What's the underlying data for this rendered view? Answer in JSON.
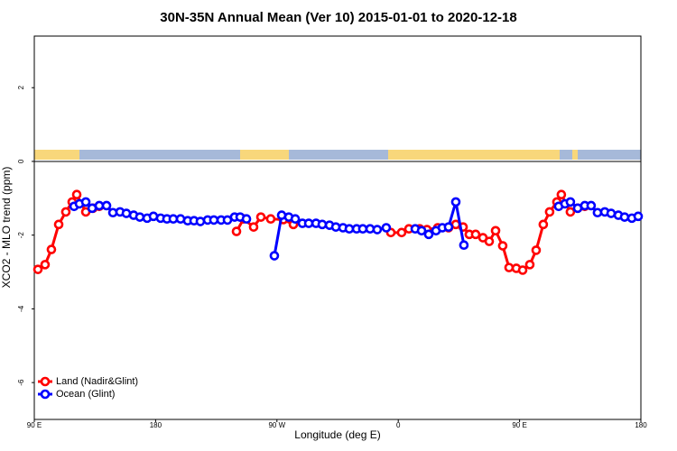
{
  "chart_data": {
    "type": "line",
    "title": "30N-35N Annual Mean (Ver 10)   2015-01-01 to 2020-12-18",
    "x_label": "Longitude (deg E)",
    "y_label": "XCO2 - MLO trend (ppm)",
    "xlim": [
      90,
      540
    ],
    "xticks": [
      {
        "value": 90,
        "label": "90 E"
      },
      180,
      {
        "value": 270,
        "label": "90 W"
      },
      {
        "value": 360,
        "label": "0"
      },
      {
        "value": 450,
        "label": "90 E"
      },
      {
        "value": 540,
        "label": "180"
      }
    ],
    "ylim": [
      -7,
      3.4
    ],
    "yticks": [
      -6,
      -4,
      -2,
      0,
      2
    ],
    "legend": "bottom-left",
    "series": [
      {
        "name": "Land (Nadir&Glint)",
        "color": "#ff0000",
        "x": [
          92.7,
          98.0,
          102.7,
          108.1,
          113.4,
          118.1,
          121.5,
          128.2,
          133.5,
          138.2,
          190,
          240.0,
          245.3,
          252.7,
          258.1,
          265.4,
          274.8,
          282.2,
          320,
          354.5,
          362.5,
          367.9,
          375.9,
          381.3,
          389.3,
          397.3,
          402.7,
          408.1,
          412.7,
          417.4,
          422.8,
          427.5,
          432.2,
          437.5,
          442.2,
          447.6,
          452.3,
          457.6,
          462.3,
          467.6,
          472.3,
          477.7,
          481.0,
          487.7,
          493.1,
          498.4
        ],
        "values": [
          -2.93,
          -2.8,
          -2.39,
          -1.71,
          -1.37,
          -1.1,
          -0.9,
          -1.37,
          -1.27,
          -1.22,
          null,
          -1.9,
          -1.56,
          -1.78,
          -1.51,
          -1.56,
          -1.58,
          -1.71,
          null,
          -1.93,
          -1.93,
          -1.83,
          -1.83,
          -1.85,
          -1.8,
          -1.8,
          -1.71,
          -1.78,
          -1.98,
          -1.98,
          -2.07,
          -2.17,
          -1.88,
          -2.29,
          -2.88,
          -2.9,
          -2.95,
          -2.8,
          -2.41,
          -1.71,
          -1.37,
          -1.1,
          -0.9,
          -1.37,
          -1.27,
          -1.22
        ]
      },
      {
        "name": "Ocean (Glint)",
        "color": "#0000ff",
        "x": [
          119.5,
          123.5,
          128.2,
          132.9,
          138.2,
          143.6,
          148.3,
          153.6,
          158.3,
          163.7,
          168.3,
          173.7,
          178.4,
          183.7,
          188.4,
          193.1,
          198.5,
          203.8,
          208.5,
          213.2,
          218.6,
          223.2,
          228.6,
          233.3,
          238.6,
          242.7,
          247.4,
          258,
          268.1,
          273.5,
          278.8,
          283.6,
          288.9,
          293.6,
          299.0,
          303.6,
          309.0,
          313.7,
          319.0,
          323.7,
          329.1,
          333.7,
          339.1,
          344.4,
          351.1,
          360,
          372.6,
          377.3,
          382.6,
          388.0,
          392.7,
          397.3,
          402.7,
          408.7,
          440,
          479.0,
          483.7,
          487.7,
          493.1,
          498.4,
          503.1,
          507.8,
          513.2,
          517.9,
          523.3,
          527.9,
          533.3,
          538.0
        ],
        "values": [
          -1.22,
          -1.15,
          -1.1,
          -1.27,
          -1.2,
          -1.2,
          -1.39,
          -1.37,
          -1.41,
          -1.46,
          -1.51,
          -1.54,
          -1.49,
          -1.54,
          -1.56,
          -1.56,
          -1.56,
          -1.61,
          -1.61,
          -1.63,
          -1.59,
          -1.59,
          -1.59,
          -1.59,
          -1.51,
          -1.51,
          -1.56,
          null,
          -2.56,
          -1.46,
          -1.51,
          -1.56,
          -1.68,
          -1.68,
          -1.68,
          -1.71,
          -1.73,
          -1.78,
          -1.8,
          -1.83,
          -1.83,
          -1.83,
          -1.83,
          -1.85,
          -1.8,
          null,
          -1.83,
          -1.88,
          -1.98,
          -1.88,
          -1.8,
          -1.78,
          -1.1,
          -2.27,
          null,
          -1.22,
          -1.15,
          -1.1,
          -1.27,
          -1.2,
          -1.2,
          -1.39,
          -1.37,
          -1.41,
          -1.46,
          -1.51,
          -1.54,
          -1.49
        ]
      }
    ]
  }
}
